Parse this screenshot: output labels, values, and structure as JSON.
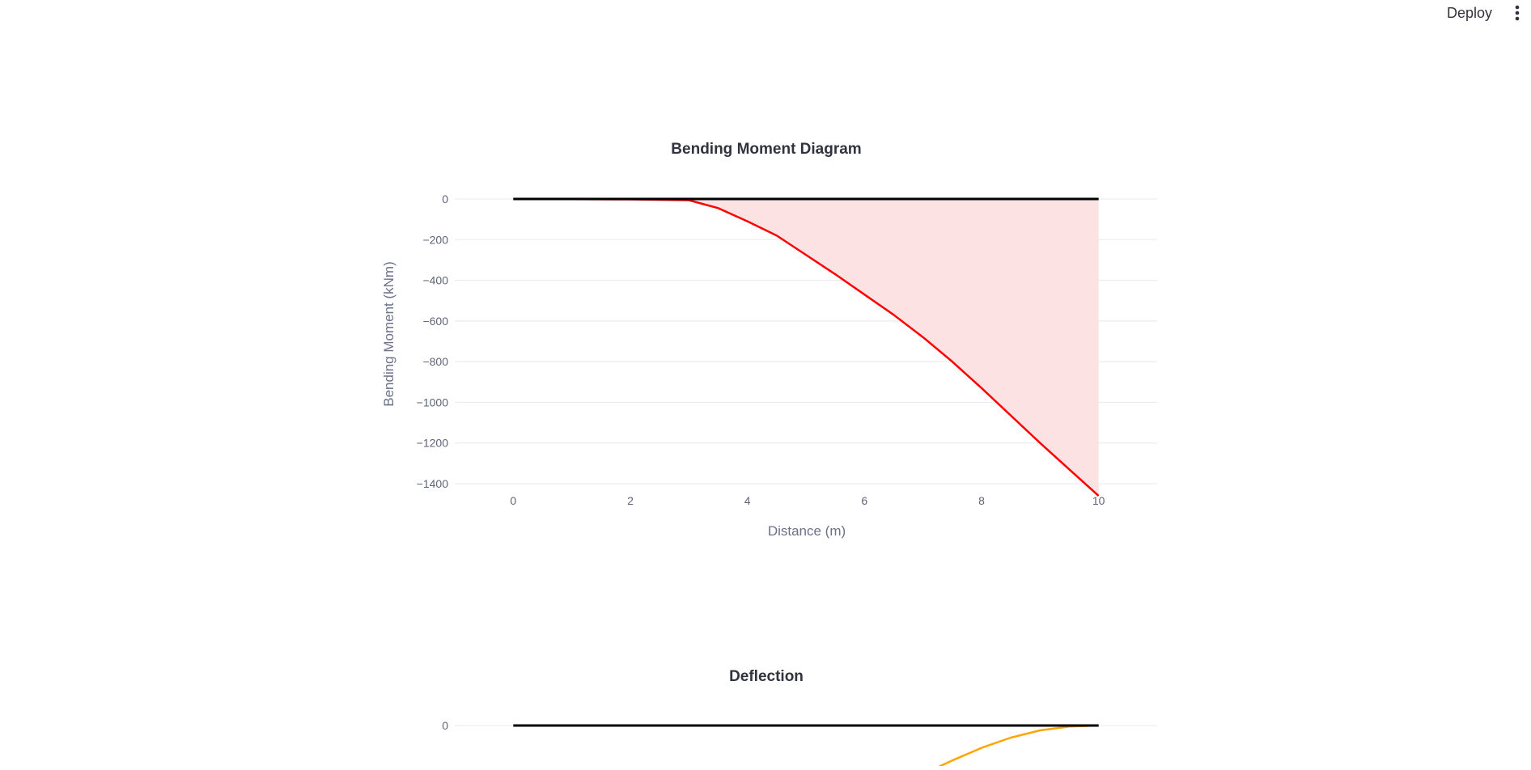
{
  "header": {
    "deploy_label": "Deploy",
    "menu_icon": "vertical-ellipsis-icon"
  },
  "chart_data": [
    {
      "type": "area",
      "title": "Bending Moment Diagram",
      "xlabel": "Distance (m)",
      "ylabel": "Bending Moment (kNm)",
      "xlim": [
        -1,
        11
      ],
      "ylim": [
        -1400,
        0
      ],
      "x_ticks": [
        "0",
        "2",
        "4",
        "6",
        "8",
        "10"
      ],
      "y_ticks": [
        "0",
        "−200",
        "−400",
        "−600",
        "−800",
        "−1000",
        "−1200",
        "−1400"
      ],
      "grid": true,
      "series": [
        {
          "color": "#ff0000",
          "fill": "#fde2e4",
          "x": [
            0,
            1,
            2,
            2.5,
            3,
            3.5,
            4,
            4.5,
            5,
            5.5,
            6,
            6.5,
            7,
            7.5,
            8,
            8.5,
            9,
            9.5,
            10
          ],
          "y": [
            0,
            -1,
            -2,
            -4,
            -6,
            -45,
            -110,
            -180,
            -275,
            -370,
            -470,
            -570,
            -680,
            -800,
            -930,
            -1065,
            -1200,
            -1330,
            -1460
          ]
        },
        {
          "color": "#000000",
          "x": [
            0,
            10
          ],
          "y": [
            0,
            0
          ]
        }
      ]
    },
    {
      "type": "line",
      "title": "Deflection",
      "xlim": [
        -1,
        11
      ],
      "y_ticks": [
        "0"
      ],
      "grid": true,
      "series": [
        {
          "color": "#ffa500",
          "x": [
            7,
            7.5,
            8,
            8.5,
            9,
            9.5,
            10
          ],
          "y": [
            -1.0,
            -0.72,
            -0.46,
            -0.25,
            -0.1,
            -0.02,
            0
          ]
        },
        {
          "color": "#000000",
          "x": [
            0,
            10
          ],
          "y": [
            0,
            0
          ]
        }
      ]
    }
  ]
}
